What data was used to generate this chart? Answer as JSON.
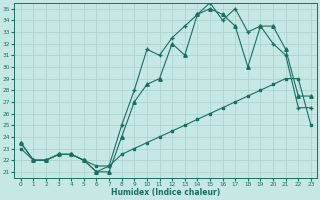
{
  "xlabel": "Humidex (Indice chaleur)",
  "bg_color": "#c5e8e5",
  "line_color": "#1a6e60",
  "grid_color": "#aad0cc",
  "xlim": [
    -0.5,
    23.5
  ],
  "ylim": [
    20.5,
    35.5
  ],
  "yticks": [
    21,
    22,
    23,
    24,
    25,
    26,
    27,
    28,
    29,
    30,
    31,
    32,
    33,
    34,
    35
  ],
  "xticks": [
    0,
    1,
    2,
    3,
    4,
    5,
    6,
    7,
    8,
    9,
    10,
    11,
    12,
    13,
    14,
    15,
    16,
    17,
    18,
    19,
    20,
    21,
    22,
    23
  ],
  "line1_x": [
    0,
    1,
    2,
    3,
    4,
    5,
    6,
    7,
    8,
    9,
    10,
    11,
    12,
    13,
    14,
    15,
    16,
    17,
    18,
    19,
    20,
    21,
    22,
    23
  ],
  "line1_y": [
    23.0,
    22.0,
    22.0,
    22.5,
    22.5,
    22.0,
    21.5,
    21.5,
    22.5,
    23.0,
    23.5,
    24.0,
    24.5,
    25.0,
    25.5,
    26.0,
    26.5,
    27.0,
    27.5,
    28.0,
    28.5,
    29.0,
    29.0,
    25.0
  ],
  "line2_x": [
    0,
    1,
    2,
    3,
    4,
    5,
    6,
    7,
    8,
    9,
    10,
    11,
    12,
    13,
    14,
    15,
    16,
    17,
    18,
    19,
    20,
    21,
    22,
    23
  ],
  "line2_y": [
    23.5,
    22.0,
    22.0,
    22.5,
    22.5,
    22.0,
    21.0,
    21.0,
    24.0,
    27.0,
    28.5,
    29.0,
    32.0,
    31.0,
    34.5,
    35.0,
    34.5,
    33.5,
    30.0,
    33.5,
    33.5,
    31.5,
    27.5,
    27.5
  ],
  "line3_x": [
    0,
    1,
    2,
    3,
    4,
    5,
    6,
    7,
    8,
    9,
    10,
    11,
    12,
    13,
    14,
    15,
    16,
    17,
    18,
    19,
    20,
    21,
    22,
    23
  ],
  "line3_y": [
    23.5,
    22.0,
    22.0,
    22.5,
    22.5,
    22.0,
    21.0,
    21.5,
    25.0,
    28.0,
    31.5,
    31.0,
    32.5,
    33.5,
    34.5,
    35.5,
    34.0,
    35.0,
    33.0,
    33.5,
    32.0,
    31.0,
    26.5,
    26.5
  ]
}
